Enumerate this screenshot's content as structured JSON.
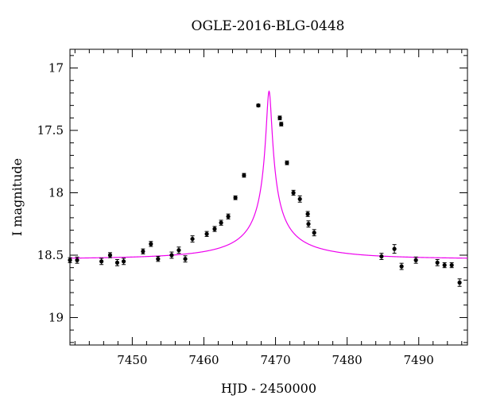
{
  "chart_data": {
    "type": "scatter",
    "title": "OGLE-2016-BLG-0448",
    "xlabel": "HJD - 2450000",
    "ylabel": "I magnitude",
    "xlim": [
      7441.3,
      7496.8
    ],
    "ylim": [
      19.22,
      16.85
    ],
    "y_inverted": true,
    "grid": false,
    "x_ticks": [
      7450,
      7460,
      7470,
      7480,
      7490
    ],
    "y_ticks": [
      17,
      17.5,
      18,
      18.5,
      19
    ],
    "x_tick_labels": [
      "7450",
      "7460",
      "7470",
      "7480",
      "7490"
    ],
    "y_tick_labels": [
      "17",
      "17.5",
      "18",
      "18.5",
      "19"
    ],
    "colors": {
      "model": "#ee00ee",
      "points": "#000000",
      "axes": "#000000"
    },
    "model": {
      "type": "microlensing-fit",
      "t0": 7469.1,
      "u0": 0.021,
      "tE": 17.0,
      "fs": 0.0525,
      "base_mag": 18.53
    },
    "points": [
      {
        "x": 7441.3,
        "y": 18.54,
        "err": 0.02
      },
      {
        "x": 7442.3,
        "y": 18.54,
        "err": 0.025
      },
      {
        "x": 7445.7,
        "y": 18.55,
        "err": 0.025
      },
      {
        "x": 7446.9,
        "y": 18.5,
        "err": 0.02
      },
      {
        "x": 7447.9,
        "y": 18.56,
        "err": 0.025
      },
      {
        "x": 7448.8,
        "y": 18.55,
        "err": 0.025
      },
      {
        "x": 7451.5,
        "y": 18.47,
        "err": 0.02
      },
      {
        "x": 7452.6,
        "y": 18.41,
        "err": 0.02
      },
      {
        "x": 7453.6,
        "y": 18.53,
        "err": 0.02
      },
      {
        "x": 7455.5,
        "y": 18.5,
        "err": 0.025
      },
      {
        "x": 7456.5,
        "y": 18.46,
        "err": 0.025
      },
      {
        "x": 7457.4,
        "y": 18.53,
        "err": 0.025
      },
      {
        "x": 7458.4,
        "y": 18.37,
        "err": 0.025
      },
      {
        "x": 7460.4,
        "y": 18.33,
        "err": 0.02
      },
      {
        "x": 7461.5,
        "y": 18.29,
        "err": 0.02
      },
      {
        "x": 7462.4,
        "y": 18.24,
        "err": 0.02
      },
      {
        "x": 7463.4,
        "y": 18.19,
        "err": 0.02
      },
      {
        "x": 7464.4,
        "y": 18.04,
        "err": 0.015
      },
      {
        "x": 7465.6,
        "y": 17.86,
        "err": 0.015
      },
      {
        "x": 7467.6,
        "y": 17.3,
        "err": 0.01
      },
      {
        "x": 7470.6,
        "y": 17.4,
        "err": 0.015
      },
      {
        "x": 7470.8,
        "y": 17.45,
        "err": 0.015
      },
      {
        "x": 7471.6,
        "y": 17.76,
        "err": 0.015
      },
      {
        "x": 7472.5,
        "y": 18.0,
        "err": 0.02
      },
      {
        "x": 7473.4,
        "y": 18.05,
        "err": 0.025
      },
      {
        "x": 7474.5,
        "y": 18.17,
        "err": 0.02
      },
      {
        "x": 7474.6,
        "y": 18.25,
        "err": 0.025
      },
      {
        "x": 7475.4,
        "y": 18.32,
        "err": 0.025
      },
      {
        "x": 7484.8,
        "y": 18.51,
        "err": 0.025
      },
      {
        "x": 7486.6,
        "y": 18.45,
        "err": 0.035
      },
      {
        "x": 7487.6,
        "y": 18.59,
        "err": 0.025
      },
      {
        "x": 7489.6,
        "y": 18.54,
        "err": 0.025
      },
      {
        "x": 7492.6,
        "y": 18.56,
        "err": 0.025
      },
      {
        "x": 7493.6,
        "y": 18.58,
        "err": 0.02
      },
      {
        "x": 7494.6,
        "y": 18.58,
        "err": 0.02
      },
      {
        "x": 7495.7,
        "y": 18.72,
        "err": 0.03
      }
    ]
  }
}
